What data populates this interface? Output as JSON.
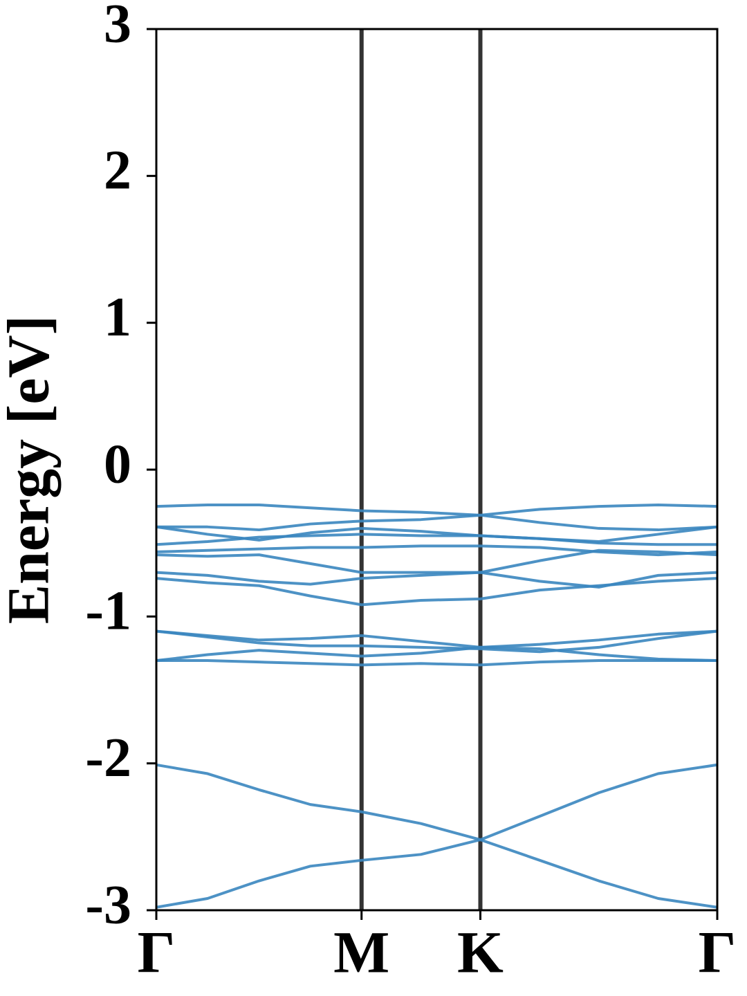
{
  "chart_data": {
    "type": "line",
    "y_label": "Energy [eV]",
    "x": [
      0,
      0.144,
      0.289,
      0.433,
      0.577,
      0.744,
      0.911,
      1.078,
      1.244,
      1.411,
      1.577
    ],
    "xlim": [
      0,
      1.577
    ],
    "xticks": [
      {
        "value": 0,
        "label": "Γ"
      },
      {
        "value": 0.577,
        "label": "M"
      },
      {
        "value": 0.911,
        "label": "K"
      },
      {
        "value": 1.577,
        "label": "Γ"
      }
    ],
    "ylim": [
      -3,
      3
    ],
    "yticks": [
      -3,
      -2,
      -1,
      0,
      1,
      2,
      3
    ],
    "kpoint_line_color": "#333333",
    "series": [
      {
        "color": "#3a86bf",
        "values": [
          -2.98,
          -2.92,
          -2.8,
          -2.7,
          -2.66,
          -2.62,
          -2.52,
          -2.66,
          -2.8,
          -2.92,
          -2.98
        ]
      },
      {
        "color": "#3a86bf",
        "values": [
          -2.01,
          -2.07,
          -2.18,
          -2.28,
          -2.33,
          -2.41,
          -2.52,
          -2.36,
          -2.2,
          -2.07,
          -2.01
        ]
      },
      {
        "color": "#3a86bf",
        "values": [
          -1.1,
          -1.13,
          -1.16,
          -1.15,
          -1.13,
          -1.17,
          -1.21,
          -1.19,
          -1.16,
          -1.12,
          -1.1
        ]
      },
      {
        "color": "#3a86bf",
        "values": [
          -1.1,
          -1.14,
          -1.18,
          -1.2,
          -1.2,
          -1.21,
          -1.22,
          -1.24,
          -1.21,
          -1.15,
          -1.1
        ]
      },
      {
        "color": "#3a86bf",
        "values": [
          -1.3,
          -1.26,
          -1.23,
          -1.25,
          -1.27,
          -1.25,
          -1.21,
          -1.22,
          -1.26,
          -1.29,
          -1.3
        ]
      },
      {
        "color": "#3a86bf",
        "values": [
          -1.3,
          -1.3,
          -1.31,
          -1.32,
          -1.33,
          -1.32,
          -1.33,
          -1.31,
          -1.3,
          -1.3,
          -1.3
        ]
      },
      {
        "color": "#3a86bf",
        "values": [
          -0.25,
          -0.24,
          -0.24,
          -0.26,
          -0.28,
          -0.29,
          -0.31,
          -0.27,
          -0.25,
          -0.24,
          -0.25
        ]
      },
      {
        "color": "#3a86bf",
        "values": [
          -0.39,
          -0.39,
          -0.41,
          -0.37,
          -0.35,
          -0.34,
          -0.31,
          -0.36,
          -0.4,
          -0.41,
          -0.39
        ]
      },
      {
        "color": "#3a86bf",
        "values": [
          -0.39,
          -0.44,
          -0.48,
          -0.43,
          -0.4,
          -0.42,
          -0.45,
          -0.47,
          -0.49,
          -0.44,
          -0.39
        ]
      },
      {
        "color": "#3a86bf",
        "values": [
          -0.51,
          -0.49,
          -0.46,
          -0.45,
          -0.44,
          -0.45,
          -0.45,
          -0.47,
          -0.5,
          -0.51,
          -0.51
        ]
      },
      {
        "color": "#3a86bf",
        "values": [
          -0.56,
          -0.55,
          -0.54,
          -0.53,
          -0.53,
          -0.52,
          -0.52,
          -0.53,
          -0.56,
          -0.58,
          -0.56
        ]
      },
      {
        "color": "#3a86bf",
        "values": [
          -0.58,
          -0.59,
          -0.58,
          -0.64,
          -0.7,
          -0.7,
          -0.7,
          -0.62,
          -0.55,
          -0.56,
          -0.58
        ]
      },
      {
        "color": "#3a86bf",
        "values": [
          -0.7,
          -0.72,
          -0.76,
          -0.78,
          -0.74,
          -0.72,
          -0.7,
          -0.76,
          -0.8,
          -0.72,
          -0.7
        ]
      },
      {
        "color": "#3a86bf",
        "values": [
          -0.74,
          -0.77,
          -0.79,
          -0.86,
          -0.92,
          -0.89,
          -0.88,
          -0.82,
          -0.79,
          -0.76,
          -0.74
        ]
      }
    ]
  }
}
